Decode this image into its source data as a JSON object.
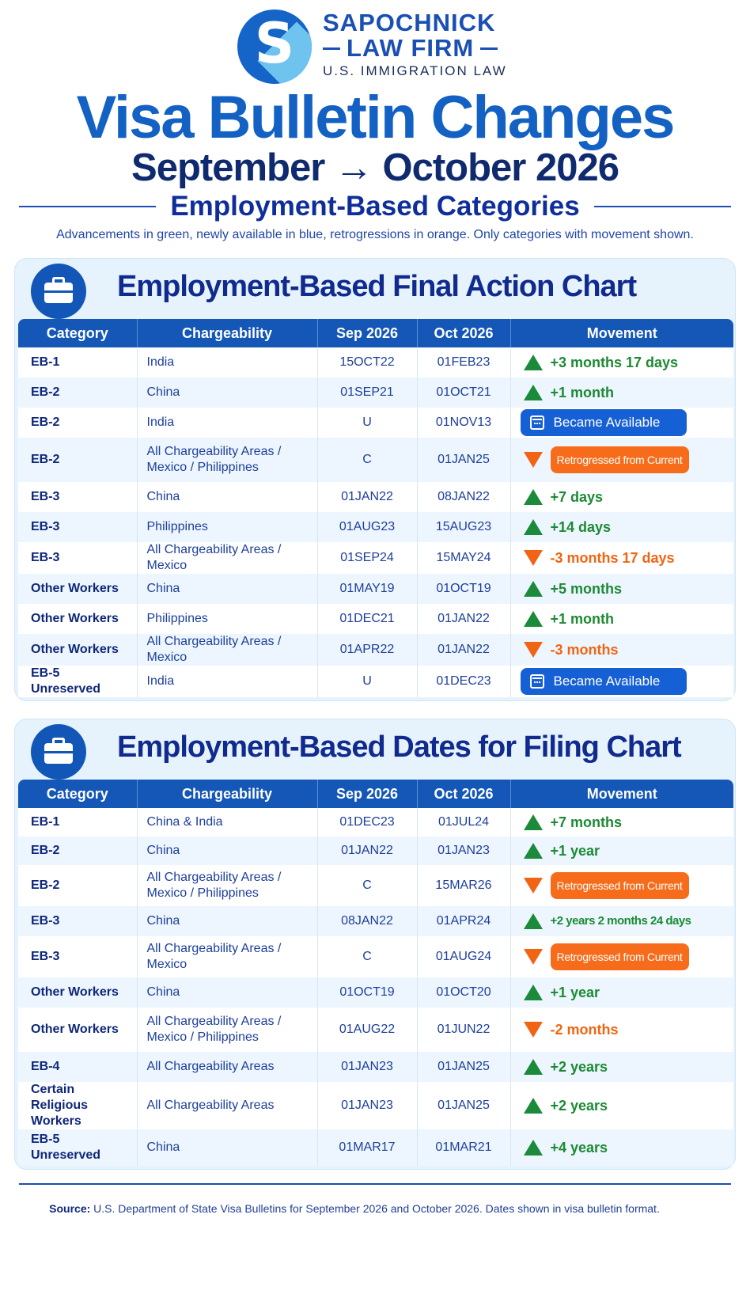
{
  "brand": {
    "line1": "SAPOCHNICK",
    "line2": "LAW FIRM",
    "line3": "U.S. IMMIGRATION LAW",
    "logo_letter": "S"
  },
  "header": {
    "title": "Visa Bulletin Changes",
    "subtitle": "September → October 2026",
    "section": "Employment-Based Categories",
    "note": "Advancements in green, newly available in blue, retrogressions in orange. Only categories with movement shown."
  },
  "columns": {
    "category": "Category",
    "chargeability": "Chargeability",
    "sep": "Sep 2026",
    "oct": "Oct 2026",
    "movement": "Movement"
  },
  "colors": {
    "advance": "#1c8a34",
    "available": "#1660d6",
    "retrogress": "#f26410",
    "primary": "#1457b6"
  },
  "final_action": {
    "title": "Employment-Based Final Action Chart",
    "icon": "briefcase-icon",
    "rows": [
      {
        "category": "EB-1",
        "chargeability": "India",
        "sep": "15OCT22",
        "oct": "01FEB23",
        "type": "up",
        "movement": "+3 months 17 days"
      },
      {
        "category": "EB-2",
        "chargeability": "China",
        "sep": "01SEP21",
        "oct": "01OCT21",
        "type": "up",
        "movement": "+1 month"
      },
      {
        "category": "EB-2",
        "chargeability": "India",
        "sep": "U",
        "oct": "01NOV13",
        "type": "available",
        "movement": "Became Available"
      },
      {
        "category": "EB-2",
        "chargeability": "All Chargeability Areas / Mexico / Philippines",
        "sep": "C",
        "oct": "01JAN25",
        "type": "retro",
        "movement": "Retrogressed from Current"
      },
      {
        "category": "EB-3",
        "chargeability": "China",
        "sep": "01JAN22",
        "oct": "08JAN22",
        "type": "up",
        "movement": "+7 days"
      },
      {
        "category": "EB-3",
        "chargeability": "Philippines",
        "sep": "01AUG23",
        "oct": "15AUG23",
        "type": "up",
        "movement": "+14 days"
      },
      {
        "category": "EB-3",
        "chargeability": "All Chargeability Areas / Mexico",
        "sep": "01SEP24",
        "oct": "15MAY24",
        "type": "down",
        "movement": "-3 months 17 days"
      },
      {
        "category": "Other Workers",
        "chargeability": "China",
        "sep": "01MAY19",
        "oct": "01OCT19",
        "type": "up",
        "movement": "+5 months"
      },
      {
        "category": "Other Workers",
        "chargeability": "Philippines",
        "sep": "01DEC21",
        "oct": "01JAN22",
        "type": "up",
        "movement": "+1 month"
      },
      {
        "category": "Other Workers",
        "chargeability": "All Chargeability Areas / Mexico",
        "sep": "01APR22",
        "oct": "01JAN22",
        "type": "down",
        "movement": "-3 months"
      },
      {
        "category": "EB-5 Unreserved",
        "chargeability": "India",
        "sep": "U",
        "oct": "01DEC23",
        "type": "available",
        "movement": "Became Available"
      }
    ]
  },
  "dates_for_filing": {
    "title": "Employment-Based Dates for Filing Chart",
    "icon": "briefcase-icon",
    "rows": [
      {
        "category": "EB-1",
        "chargeability": "China & India",
        "sep": "01DEC23",
        "oct": "01JUL24",
        "type": "up",
        "movement": "+7 months"
      },
      {
        "category": "EB-2",
        "chargeability": "China",
        "sep": "01JAN22",
        "oct": "01JAN23",
        "type": "up",
        "movement": "+1 year"
      },
      {
        "category": "EB-2",
        "chargeability": "All Chargeability Areas / Mexico / Philippines",
        "sep": "C",
        "oct": "15MAR26",
        "type": "retro",
        "movement": "Retrogressed from Current"
      },
      {
        "category": "EB-3",
        "chargeability": "China",
        "sep": "08JAN22",
        "oct": "01APR24",
        "type": "up-small",
        "movement": "+2 years 2 months 24 days"
      },
      {
        "category": "EB-3",
        "chargeability": "All Chargeability Areas / Mexico",
        "sep": "C",
        "oct": "01AUG24",
        "type": "retro",
        "movement": "Retrogressed from Current"
      },
      {
        "category": "Other Workers",
        "chargeability": "China",
        "sep": "01OCT19",
        "oct": "01OCT20",
        "type": "up",
        "movement": "+1 year"
      },
      {
        "category": "Other Workers",
        "chargeability": "All Chargeability Areas / Mexico / Philippines",
        "sep": "01AUG22",
        "oct": "01JUN22",
        "type": "down",
        "movement": "-2 months"
      },
      {
        "category": "EB-4",
        "chargeability": "All Chargeability Areas",
        "sep": "01JAN23",
        "oct": "01JAN25",
        "type": "up",
        "movement": "+2 years"
      },
      {
        "category": "Certain Religious Workers",
        "chargeability": "All Chargeability Areas",
        "sep": "01JAN23",
        "oct": "01JAN25",
        "type": "up",
        "movement": "+2 years"
      },
      {
        "category": "EB-5 Unreserved",
        "chargeability": "China",
        "sep": "01MAR17",
        "oct": "01MAR21",
        "type": "up",
        "movement": "+4 years"
      }
    ]
  },
  "footer": {
    "source_label": "Source:",
    "source_text": "U.S. Department of State Visa Bulletins for September 2026 and October 2026. Dates shown in visa bulletin format."
  }
}
